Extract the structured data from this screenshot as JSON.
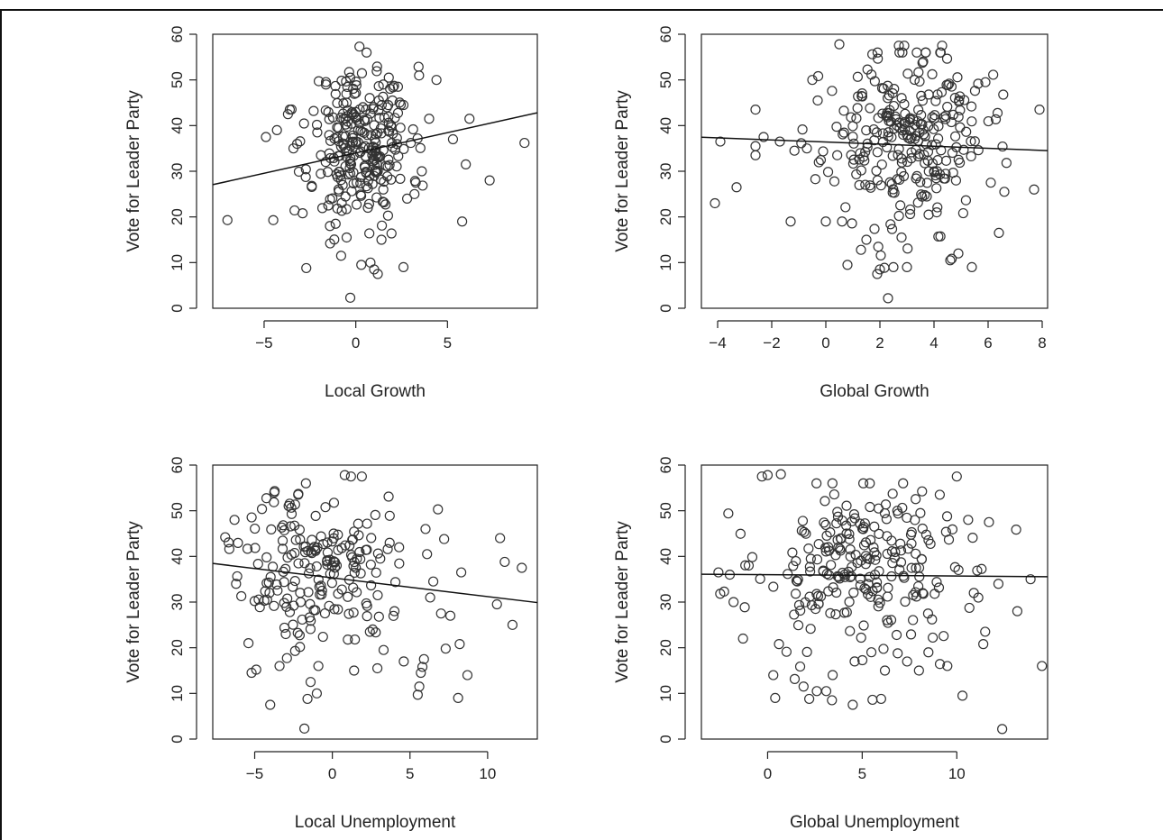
{
  "chart_data": [
    {
      "type": "scatter",
      "xlabel": "Local Growth",
      "ylabel": "Vote for Leader Party",
      "xlim": [
        -7.8,
        9.9
      ],
      "ylim": [
        0,
        60
      ],
      "xticks": [
        -5,
        0,
        5
      ],
      "xtick_labels": [
        "−5",
        "0",
        "5"
      ],
      "yticks": [
        0,
        10,
        20,
        30,
        40,
        50,
        60
      ],
      "fit_line": {
        "slope": 0.89,
        "intercept": 34.0
      },
      "points_seed": 11,
      "points_count": 290,
      "x": [
        -7.0,
        -4.5,
        -4.9,
        -4.3,
        -3.6,
        -3.4,
        -3.7,
        -3.2,
        -2.9,
        -2.7,
        -2.3,
        -2.1,
        -1.9,
        -2.4,
        -1.5,
        -1.4,
        -1.1,
        -0.8,
        -0.5,
        -0.3,
        -0.3,
        0.2,
        0.3,
        0.5,
        0.8,
        1.0,
        1.2,
        1.4,
        1.5,
        1.8,
        2.0,
        2.3,
        2.6,
        2.8,
        3.0,
        3.2,
        3.6,
        4.0,
        4.4,
        5.3,
        5.8,
        6.0,
        6.2,
        7.3,
        9.2,
        -0.3,
        0.2,
        0.5,
        1.2,
        1.7,
        2.6,
        1.5,
        0.9
      ],
      "y": [
        19.3,
        19.3,
        37.5,
        39.0,
        43.5,
        35.0,
        42.5,
        36.0,
        20.8,
        8.8,
        43.2,
        38.5,
        33.5,
        26.8,
        22.5,
        14.2,
        18.5,
        11.5,
        15.5,
        2.3,
        50.5,
        57.3,
        9.5,
        41.0,
        10.0,
        8.5,
        7.5,
        15.0,
        49.0,
        50.5,
        45.5,
        48.5,
        9.0,
        24.0,
        36.2,
        25.0,
        30.0,
        41.5,
        50.0,
        37.0,
        19.0,
        31.5,
        41.5,
        28.0,
        36.2,
        29.5,
        40.5,
        35.5,
        30.0,
        44.0,
        44.5,
        26.0,
        33.5
      ],
      "cloud": {
        "cx": 0.3,
        "sx": 1.35,
        "cy": 36,
        "sy": 8.5,
        "n": 240
      }
    },
    {
      "type": "scatter",
      "xlabel": "Global Growth",
      "ylabel": "Vote for Leader Party",
      "xlim": [
        -4.6,
        8.2
      ],
      "ylim": [
        0,
        60
      ],
      "xticks": [
        -4,
        -2,
        0,
        2,
        4,
        6,
        8
      ],
      "xtick_labels": [
        "−4",
        "−2",
        "0",
        "2",
        "4",
        "6",
        "8"
      ],
      "yticks": [
        0,
        10,
        20,
        30,
        40,
        50,
        60
      ],
      "fit_line": {
        "slope": -0.23,
        "intercept": 36.4
      },
      "points_seed": 23,
      "x": [
        -4.1,
        -3.9,
        -3.3,
        -2.6,
        -2.6,
        -2.6,
        -2.3,
        -1.7,
        -1.3,
        -0.7,
        -0.5,
        -0.3,
        0.0,
        0.5,
        0.8,
        1.9,
        2.0,
        2.3,
        2.5,
        2.7,
        2.9,
        3.0,
        3.6,
        4.3,
        4.6,
        4.9,
        5.4,
        5.9,
        6.1,
        6.4,
        6.6,
        7.7,
        7.9,
        3.8,
        1.5,
        2.8,
        4.1,
        0.6
      ],
      "y": [
        23.0,
        36.5,
        26.5,
        43.5,
        35.5,
        33.5,
        37.5,
        36.5,
        19.0,
        35.0,
        50.0,
        45.5,
        19.0,
        57.8,
        9.5,
        7.5,
        8.5,
        2.2,
        9.0,
        57.5,
        57.5,
        9.0,
        54.0,
        57.5,
        10.5,
        12.0,
        9.0,
        49.5,
        27.5,
        16.5,
        25.5,
        26.0,
        43.5,
        20.5,
        15.0,
        15.5,
        21.0,
        19.0
      ],
      "cloud": {
        "cx": 2.9,
        "sx": 1.5,
        "cy": 37,
        "sy": 9.5,
        "n": 260
      }
    },
    {
      "type": "scatter",
      "xlabel": "Local Unemployment",
      "ylabel": "Vote for Leader Party",
      "xlim": [
        -7.7,
        13.2
      ],
      "ylim": [
        0,
        60
      ],
      "xticks": [
        -5,
        0,
        5,
        10
      ],
      "xtick_labels": [
        "−5",
        "0",
        "5",
        "10"
      ],
      "yticks": [
        0,
        10,
        20,
        30,
        40,
        50,
        60
      ],
      "fit_line": {
        "slope": -0.41,
        "intercept": 35.3
      },
      "points_seed": 37,
      "x": [
        -6.9,
        -6.2,
        -6.3,
        -5.4,
        -5.2,
        -4.9,
        -4.2,
        -4.0,
        -3.4,
        -3.0,
        -2.2,
        -1.8,
        -1.6,
        -1.4,
        -1.0,
        -0.9,
        0.8,
        1.2,
        1.4,
        1.9,
        2.6,
        2.9,
        3.0,
        3.3,
        4.0,
        4.3,
        4.6,
        5.5,
        5.6,
        5.7,
        5.8,
        5.9,
        6.0,
        6.1,
        6.3,
        6.5,
        6.8,
        7.0,
        7.2,
        7.3,
        7.6,
        8.1,
        8.2,
        8.3,
        8.7,
        10.6,
        10.8,
        11.1,
        11.6,
        12.2
      ],
      "y": [
        44.2,
        34.0,
        48.0,
        21.0,
        14.5,
        15.2,
        30.5,
        7.5,
        16.0,
        23.0,
        53.5,
        2.3,
        8.8,
        12.5,
        10.0,
        16.0,
        57.8,
        57.5,
        15.0,
        57.5,
        24.0,
        15.5,
        26.8,
        19.5,
        28.0,
        42.0,
        17.0,
        9.7,
        11.5,
        14.5,
        15.8,
        17.5,
        46.0,
        40.5,
        31.0,
        34.5,
        50.3,
        27.5,
        43.8,
        19.8,
        27.0,
        9.0,
        20.8,
        36.5,
        14.0,
        29.5,
        44.0,
        38.8,
        25.0,
        37.5
      ],
      "cloud": {
        "cx": -1.2,
        "sx": 2.3,
        "cy": 38,
        "sy": 8.5,
        "n": 180
      }
    },
    {
      "type": "scatter",
      "xlabel": "Global Unemployment",
      "ylabel": "Vote for Leader Party",
      "xlim": [
        -3.5,
        14.8
      ],
      "ylim": [
        0,
        60
      ],
      "xticks": [
        0,
        5,
        10
      ],
      "xtick_labels": [
        "0",
        "5",
        "10"
      ],
      "yticks": [
        0,
        10,
        20,
        30,
        40,
        50,
        60
      ],
      "fit_line": {
        "slope": -0.03,
        "intercept": 36.0
      },
      "points_seed": 53,
      "x": [
        -2.6,
        -2.3,
        -2.0,
        -1.8,
        -1.3,
        -1.0,
        -0.3,
        0.0,
        0.3,
        0.4,
        0.6,
        0.7,
        1.9,
        2.2,
        2.6,
        3.1,
        3.4,
        4.5,
        4.6,
        6.0,
        6.2,
        8.0,
        9.5,
        10.0,
        10.3,
        10.6,
        11.4,
        11.5,
        12.2,
        12.4,
        13.2,
        13.9,
        14.5,
        9.1,
        8.5,
        10.9,
        11.7
      ],
      "y": [
        36.5,
        32.3,
        36.0,
        30.0,
        22.0,
        38.0,
        57.5,
        57.8,
        14.0,
        9.0,
        20.8,
        58.0,
        11.5,
        8.8,
        10.5,
        10.5,
        8.5,
        7.5,
        17.0,
        8.8,
        15.0,
        15.0,
        16.0,
        57.5,
        9.5,
        48.0,
        20.8,
        23.5,
        34.0,
        2.2,
        28.0,
        35.0,
        16.0,
        53.5,
        19.0,
        32.0,
        47.5
      ],
      "cloud": {
        "cx": 5.2,
        "sx": 2.9,
        "cy": 37,
        "sy": 10,
        "n": 230
      }
    }
  ]
}
